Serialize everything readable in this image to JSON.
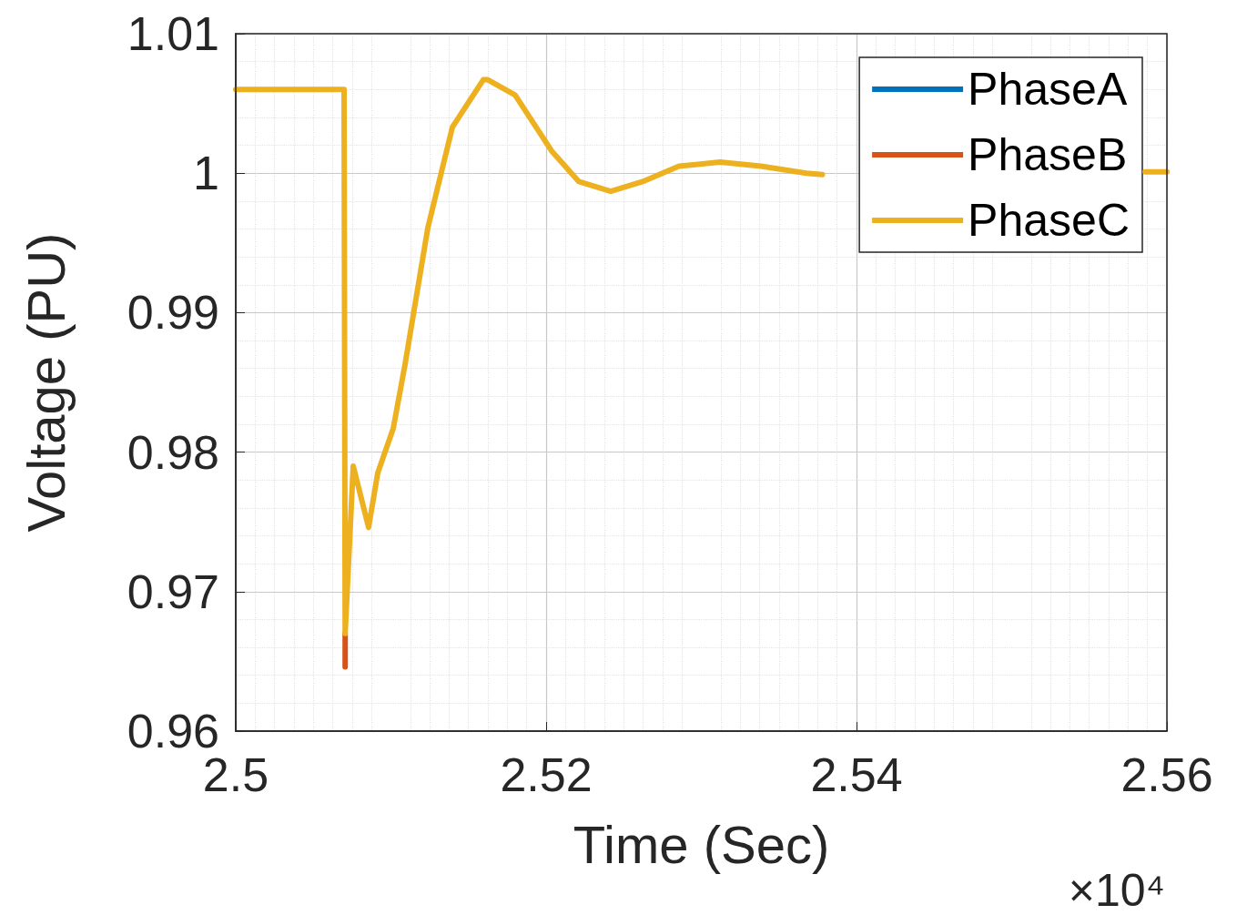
{
  "chart_data": {
    "type": "line",
    "xlabel": "Time (Sec)",
    "ylabel": "Voltage (PU)",
    "annotations": [
      "×10⁴"
    ],
    "x": [
      2.5,
      2.50698,
      2.50705,
      2.50757,
      2.50856,
      2.50915,
      2.51015,
      2.51091,
      2.51238,
      2.51396,
      2.51595,
      2.51624,
      2.518,
      2.52035,
      2.52211,
      2.52416,
      2.52622,
      2.52856,
      2.5312,
      2.53384,
      2.53677,
      2.5378,
      2.545,
      2.5586,
      2.56
    ],
    "series": [
      {
        "name": "PhaseA",
        "color": "#0072bd",
        "values": [
          null,
          null,
          null,
          null,
          null,
          null,
          null,
          null,
          null,
          null,
          null,
          null,
          null,
          null,
          null,
          null,
          null,
          null,
          null,
          null,
          null,
          null,
          null,
          null,
          null
        ]
      },
      {
        "name": "PhaseB",
        "color": "#d95319",
        "x": [
          2.50705,
          2.50705
        ],
        "values": [
          0.967,
          0.9646
        ]
      },
      {
        "name": "PhaseC",
        "color": "#edb120",
        "values": [
          1.006,
          1.006,
          0.967,
          0.979,
          0.9746,
          0.9785,
          0.9817,
          0.9863,
          0.9961,
          1.0033,
          1.0067,
          1.0067,
          1.0056,
          1.0016,
          0.9994,
          0.9987,
          0.9994,
          1.0005,
          1.0008,
          1.0005,
          1.0,
          0.9999,
          null,
          1.0001,
          1.0001
        ]
      }
    ],
    "xlim": [
      2.5,
      2.56
    ],
    "xticks": [
      2.5,
      2.52,
      2.54,
      2.56
    ],
    "ylim": [
      0.96,
      1.01
    ],
    "yticks": [
      0.96,
      0.97,
      0.98,
      0.99,
      1,
      1.01
    ],
    "grid": true,
    "legend": "top right",
    "marker": "none",
    "line_style": "solid"
  }
}
